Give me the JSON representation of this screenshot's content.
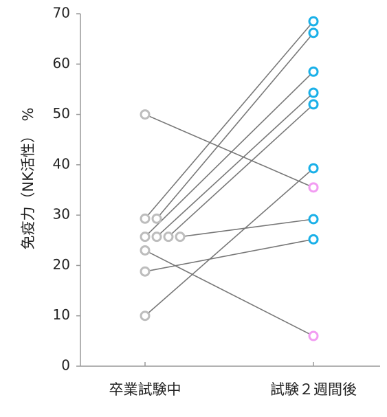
{
  "chart_data": {
    "type": "scatter",
    "title": "",
    "ylabel": "免疫力（NK活性）　%",
    "xlabel": "",
    "ylim": [
      0,
      70
    ],
    "yticks": [
      0,
      10,
      20,
      30,
      40,
      50,
      60,
      70
    ],
    "categories": [
      "卒業試験中",
      "試験２週間後"
    ],
    "grid": false,
    "colors": {
      "before": "#bdbdbd",
      "after_up": "#1ab0e8",
      "after_down": "#f29cf2",
      "line": "#777777"
    },
    "pairs": [
      {
        "before": 50.0,
        "after": 35.5,
        "direction": "down"
      },
      {
        "before": 29.3,
        "after": 68.5,
        "direction": "up"
      },
      {
        "before": 29.3,
        "after": 66.2,
        "direction": "up"
      },
      {
        "before": 25.7,
        "after": 58.5,
        "direction": "up"
      },
      {
        "before": 25.7,
        "after": 54.3,
        "direction": "up"
      },
      {
        "before": 25.7,
        "after": 52.0,
        "direction": "up"
      },
      {
        "before": 25.7,
        "after": 29.2,
        "direction": "up"
      },
      {
        "before": 23.0,
        "after": 6.0,
        "direction": "down"
      },
      {
        "before": 18.8,
        "after": 25.2,
        "direction": "up"
      },
      {
        "before": 10.0,
        "after": 39.3,
        "direction": "up"
      }
    ]
  }
}
